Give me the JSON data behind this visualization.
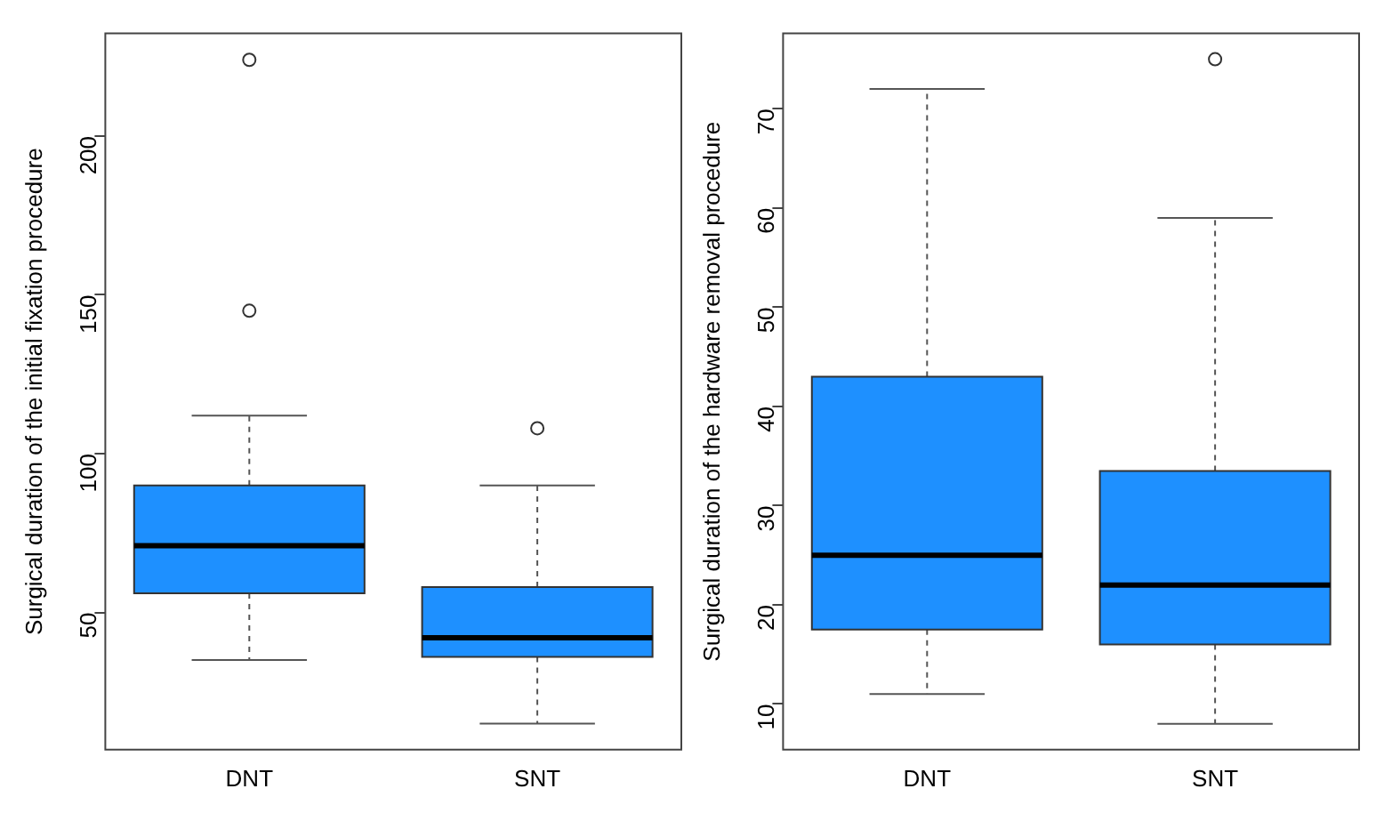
{
  "chart_data": [
    {
      "type": "box",
      "ylabel": "Surgical duration of the initial fixation procedure",
      "categories": [
        "DNT",
        "SNT"
      ],
      "color": "#1e90ff",
      "ylim": [
        6.8,
        232.3
      ],
      "yticks": [
        50,
        100,
        150,
        200
      ],
      "grid": false,
      "boxes": [
        {
          "low": 35,
          "q1": 56,
          "median": 71,
          "q3": 90,
          "high": 112,
          "outliers": [
            145,
            224
          ]
        },
        {
          "low": 15,
          "q1": 36,
          "median": 42,
          "q3": 58,
          "high": 90,
          "outliers": [
            108
          ]
        }
      ]
    },
    {
      "type": "box",
      "ylabel": "Surgical duration of the hardware removal procedure",
      "categories": [
        "DNT",
        "SNT"
      ],
      "color": "#1e90ff",
      "ylim": [
        5.4,
        77.6
      ],
      "yticks": [
        10,
        20,
        30,
        40,
        50,
        60,
        70
      ],
      "grid": false,
      "boxes": [
        {
          "low": 11,
          "q1": 17.5,
          "median": 25,
          "q3": 43,
          "high": 72
        },
        {
          "low": 8,
          "q1": 16,
          "median": 22,
          "q3": 33.5,
          "high": 59,
          "outliers": [
            75
          ]
        }
      ]
    }
  ]
}
